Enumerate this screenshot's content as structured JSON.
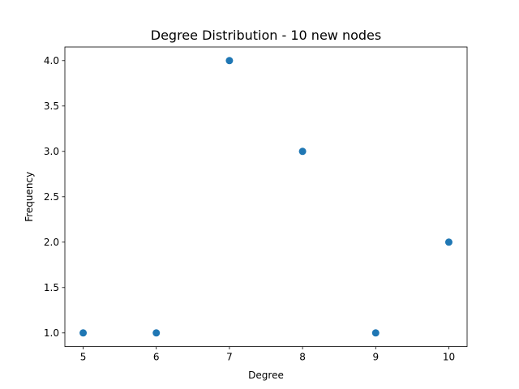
{
  "chart_data": {
    "type": "scatter",
    "title": "Degree Distribution - 10 new nodes",
    "xlabel": "Degree",
    "ylabel": "Frequency",
    "x": [
      5,
      6,
      7,
      8,
      9,
      10
    ],
    "y": [
      1.0,
      1.0,
      4.0,
      3.0,
      1.0,
      2.0
    ],
    "xlim": [
      4.75,
      10.25
    ],
    "ylim": [
      0.85,
      4.15
    ],
    "xticks": [
      5,
      6,
      7,
      8,
      9,
      10
    ],
    "xtick_labels": [
      "5",
      "6",
      "7",
      "8",
      "9",
      "10"
    ],
    "yticks": [
      1.0,
      1.5,
      2.0,
      2.5,
      3.0,
      3.5,
      4.0
    ],
    "ytick_labels": [
      "1.0",
      "1.5",
      "2.0",
      "2.5",
      "3.0",
      "3.5",
      "4.0"
    ],
    "grid": false,
    "marker_color": "#1f77b4"
  }
}
